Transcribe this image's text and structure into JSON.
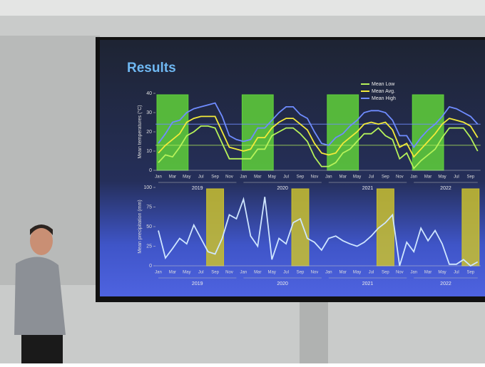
{
  "slide": {
    "title": "Results"
  },
  "chart_data": [
    {
      "type": "line",
      "y_label": "Mean temperatures (°C)",
      "categories": [
        "Jan",
        null,
        "Mar",
        null,
        "May",
        null,
        "Jul",
        null,
        "Sep",
        null,
        "Nov",
        null,
        "Jan",
        null,
        "Mar",
        null,
        "May",
        null,
        "Jul",
        null,
        "Sep",
        null,
        "Nov",
        null,
        "Jan",
        null,
        "Mar",
        null,
        "May",
        null,
        "Jul",
        null,
        "Sep",
        null,
        "Nov",
        null,
        "Jan",
        null,
        "Mar",
        null,
        "May",
        null,
        "Jul",
        null,
        "Sep",
        null
      ],
      "year_labels": [
        "2019",
        "2020",
        "2021",
        "2022"
      ],
      "ylim": [
        0,
        40
      ],
      "yticks": [
        0,
        10,
        20,
        30,
        40
      ],
      "series": [
        {
          "name": "Mean Low",
          "color": "#b6f25a",
          "values": [
            4,
            8,
            7,
            12,
            18,
            20,
            23,
            23,
            22,
            14,
            6,
            6,
            6,
            6,
            11,
            11,
            18,
            20,
            22,
            22,
            19,
            15,
            7,
            2,
            2,
            4,
            9,
            11,
            15,
            19,
            19,
            22,
            18,
            16,
            6,
            9,
            1,
            5,
            8,
            11,
            17,
            22,
            22,
            22,
            17,
            10
          ]
        },
        {
          "name": "Mean Avg.",
          "color": "#f2ea3a",
          "values": [
            9,
            13,
            16,
            19,
            25,
            27,
            28,
            28,
            28,
            20,
            12,
            11,
            10,
            11,
            17,
            17,
            22,
            25,
            27,
            27,
            24,
            21,
            14,
            9,
            8,
            9,
            14,
            17,
            20,
            24,
            25,
            24,
            25,
            21,
            12,
            14,
            7,
            11,
            15,
            19,
            24,
            27,
            26,
            25,
            23,
            17
          ]
        },
        {
          "name": "Mean High",
          "color": "#6f8cff",
          "values": [
            14,
            19,
            25,
            26,
            30,
            32,
            33,
            34,
            35,
            28,
            18,
            16,
            15,
            16,
            22,
            22,
            26,
            30,
            33,
            33,
            29,
            27,
            20,
            14,
            13,
            17,
            19,
            23,
            26,
            30,
            31,
            31,
            30,
            26,
            18,
            18,
            12,
            17,
            21,
            24,
            28,
            33,
            32,
            30,
            28,
            24
          ]
        }
      ],
      "reference_lines": [
        {
          "value": 24,
          "color": "#6f8cff"
        },
        {
          "value": 13,
          "color": "#b6f25a"
        }
      ],
      "highlights": {
        "color": "#5fd13a",
        "spans": [
          [
            0,
            4
          ],
          [
            12,
            16
          ],
          [
            24,
            28
          ],
          [
            36,
            40
          ]
        ]
      },
      "legend": "top-right"
    },
    {
      "type": "line",
      "y_label": "Mean precipitation (mm)",
      "categories": [
        "Jan",
        null,
        "Mar",
        null,
        "May",
        null,
        "Jul",
        null,
        "Sep",
        null,
        "Nov",
        null,
        "Jan",
        null,
        "Mar",
        null,
        "May",
        null,
        "Jul",
        null,
        "Sep",
        null,
        "Nov",
        null,
        "Jan",
        null,
        "Mar",
        null,
        "May",
        null,
        "Jul",
        null,
        "Sep",
        null,
        "Nov",
        null,
        "Jan",
        null,
        "Mar",
        null,
        "May",
        null,
        "Jul",
        null,
        "Sep",
        null
      ],
      "year_labels": [
        "2019",
        "2020",
        "2021",
        "2022"
      ],
      "ylim": [
        0,
        100
      ],
      "yticks": [
        0,
        25,
        50,
        75,
        100
      ],
      "series": [
        {
          "color": "#cfe6ff",
          "values": [
            45,
            10,
            22,
            35,
            28,
            52,
            35,
            18,
            15,
            35,
            65,
            60,
            85,
            38,
            25,
            88,
            8,
            35,
            28,
            55,
            60,
            35,
            30,
            20,
            35,
            38,
            32,
            28,
            25,
            30,
            38,
            48,
            55,
            65,
            0,
            30,
            18,
            48,
            32,
            45,
            28,
            2,
            2,
            8,
            0,
            5
          ]
        }
      ],
      "highlights": {
        "color": "#c9bf2e",
        "spans": [
          [
            7,
            9
          ],
          [
            19,
            21
          ],
          [
            31,
            33
          ],
          [
            43,
            45
          ]
        ]
      }
    }
  ]
}
